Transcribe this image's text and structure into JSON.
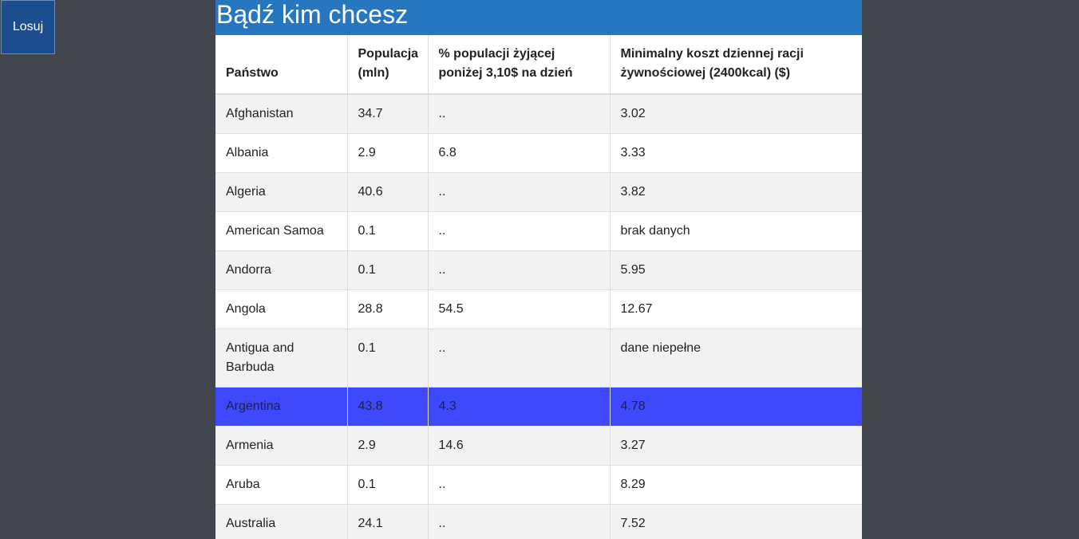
{
  "sidebar": {
    "losuj_label": "Losuj"
  },
  "header": {
    "title": "Bądź kim chcesz"
  },
  "table": {
    "columns": [
      "Państwo",
      "Populacja (mln)",
      "% populacji żyjącej poniżej 3,10$ na dzień",
      "Minimalny koszt dziennej racji żywnościowej (2400kcal) ($)"
    ],
    "rows": [
      [
        "Afghanistan",
        "34.7",
        "..",
        "3.02"
      ],
      [
        "Albania",
        "2.9",
        "6.8",
        "3.33"
      ],
      [
        "Algeria",
        "40.6",
        "..",
        "3.82"
      ],
      [
        "American Samoa",
        "0.1",
        "..",
        "brak danych"
      ],
      [
        "Andorra",
        "0.1",
        "..",
        "5.95"
      ],
      [
        "Angola",
        "28.8",
        "54.5",
        "12.67"
      ],
      [
        "Antigua and Barbuda",
        "0.1",
        "..",
        "dane niepełne"
      ],
      [
        "Argentina",
        "43.8",
        "4.3",
        "4.78"
      ],
      [
        "Armenia",
        "2.9",
        "14.6",
        "3.27"
      ],
      [
        "Aruba",
        "0.1",
        "..",
        "8.29"
      ],
      [
        "Australia",
        "24.1",
        "..",
        "7.52"
      ]
    ],
    "selected_row": "Argentina"
  },
  "colors": {
    "background": "#42474d",
    "header": "#2777c0",
    "button": "#1c4e8f",
    "selected_row": "#3e48fd"
  }
}
